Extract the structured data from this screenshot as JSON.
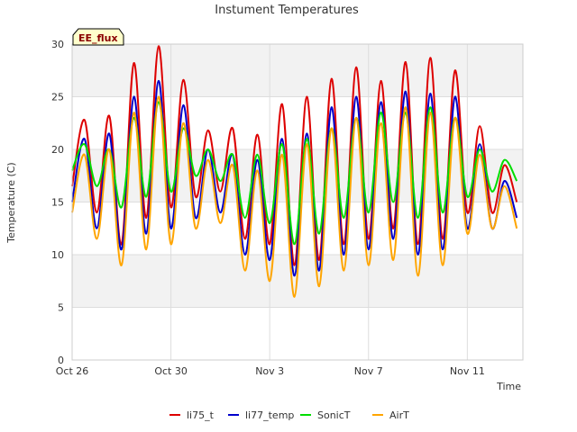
{
  "chart_data": {
    "type": "line",
    "title": "Instument Temperatures",
    "xlabel": "Time",
    "ylabel": "Temperature (C)",
    "badge": "EE_flux",
    "ylim": [
      0,
      30
    ],
    "yticks": [
      0,
      5,
      10,
      15,
      20,
      25,
      30
    ],
    "xlim": [
      "2023-10-26",
      "2023-11-13T06:00"
    ],
    "xticks": [
      {
        "date": "2023-10-26",
        "label": "Oct 26"
      },
      {
        "date": "2023-10-30",
        "label": "Oct 30"
      },
      {
        "date": "2023-11-03",
        "label": "Nov 3"
      },
      {
        "date": "2023-11-07",
        "label": "Nov 7"
      },
      {
        "date": "2023-11-11",
        "label": "Nov 11"
      }
    ],
    "grid": true,
    "legend_position": "bottom",
    "series": [
      {
        "name": "li75_t",
        "color": "#dd0000",
        "x": [
          "2023-10-26T00:00",
          "2023-10-26T12:00",
          "2023-10-27T00:00",
          "2023-10-27T12:00",
          "2023-10-28T00:00",
          "2023-10-28T12:00",
          "2023-10-29T00:00",
          "2023-10-29T12:00",
          "2023-10-30T00:00",
          "2023-10-30T12:00",
          "2023-10-31T00:00",
          "2023-10-31T12:00",
          "2023-11-01T00:00",
          "2023-11-01T12:00",
          "2023-11-02T00:00",
          "2023-11-02T12:00",
          "2023-11-03T00:00",
          "2023-11-03T12:00",
          "2023-11-04T00:00",
          "2023-11-04T12:00",
          "2023-11-05T00:00",
          "2023-11-05T12:00",
          "2023-11-06T00:00",
          "2023-11-06T12:00",
          "2023-11-07T00:00",
          "2023-11-07T12:00",
          "2023-11-08T00:00",
          "2023-11-08T12:00",
          "2023-11-09T00:00",
          "2023-11-09T12:00",
          "2023-11-10T00:00",
          "2023-11-10T12:00",
          "2023-11-11T00:00",
          "2023-11-11T12:00",
          "2023-11-12T00:00",
          "2023-11-12T12:00",
          "2023-11-13T00:00"
        ],
        "y": [
          16.5,
          22.8,
          14.0,
          23.2,
          11.0,
          28.2,
          13.5,
          29.8,
          14.5,
          26.6,
          15.5,
          21.8,
          16.0,
          22.0,
          11.5,
          21.4,
          11.0,
          24.3,
          9.0,
          25.0,
          9.5,
          26.7,
          11.0,
          27.8,
          11.5,
          26.5,
          12.5,
          28.3,
          11.0,
          28.7,
          11.5,
          27.5,
          14.0,
          22.2,
          14.0,
          18.5,
          15.0
        ]
      },
      {
        "name": "li77_temp",
        "color": "#0000cc",
        "x": [
          "2023-10-26T00:00",
          "2023-10-26T12:00",
          "2023-10-27T00:00",
          "2023-10-27T12:00",
          "2023-10-28T00:00",
          "2023-10-28T12:00",
          "2023-10-29T00:00",
          "2023-10-29T12:00",
          "2023-10-30T00:00",
          "2023-10-30T12:00",
          "2023-10-31T00:00",
          "2023-10-31T12:00",
          "2023-11-01T00:00",
          "2023-11-01T12:00",
          "2023-11-02T00:00",
          "2023-11-02T12:00",
          "2023-11-03T00:00",
          "2023-11-03T12:00",
          "2023-11-04T00:00",
          "2023-11-04T12:00",
          "2023-11-05T00:00",
          "2023-11-05T12:00",
          "2023-11-06T00:00",
          "2023-11-06T12:00",
          "2023-11-07T00:00",
          "2023-11-07T12:00",
          "2023-11-08T00:00",
          "2023-11-08T12:00",
          "2023-11-09T00:00",
          "2023-11-09T12:00",
          "2023-11-10T00:00",
          "2023-11-10T12:00",
          "2023-11-11T00:00",
          "2023-11-11T12:00",
          "2023-11-12T00:00",
          "2023-11-12T12:00",
          "2023-11-13T00:00"
        ],
        "y": [
          15.0,
          21.0,
          12.5,
          21.5,
          10.5,
          25.0,
          12.0,
          26.5,
          12.5,
          24.2,
          13.5,
          20.0,
          14.0,
          19.5,
          10.0,
          19.0,
          9.5,
          21.0,
          8.0,
          21.5,
          8.5,
          24.0,
          10.0,
          25.0,
          10.5,
          24.5,
          11.5,
          25.5,
          10.0,
          25.3,
          10.5,
          25.0,
          12.5,
          20.5,
          12.5,
          17.0,
          13.5
        ]
      },
      {
        "name": "SonicT",
        "color": "#00dd00",
        "x": [
          "2023-10-26T00:00",
          "2023-10-26T12:00",
          "2023-10-27T00:00",
          "2023-10-27T12:00",
          "2023-10-28T00:00",
          "2023-10-28T12:00",
          "2023-10-29T00:00",
          "2023-10-29T12:00",
          "2023-10-30T00:00",
          "2023-10-30T12:00",
          "2023-10-31T00:00",
          "2023-10-31T12:00",
          "2023-11-01T00:00",
          "2023-11-01T12:00",
          "2023-11-02T00:00",
          "2023-11-02T12:00",
          "2023-11-03T00:00",
          "2023-11-03T12:00",
          "2023-11-04T00:00",
          "2023-11-04T12:00",
          "2023-11-05T00:00",
          "2023-11-05T12:00",
          "2023-11-06T00:00",
          "2023-11-06T12:00",
          "2023-11-07T00:00",
          "2023-11-07T12:00",
          "2023-11-08T00:00",
          "2023-11-08T12:00",
          "2023-11-09T00:00",
          "2023-11-09T12:00",
          "2023-11-10T00:00",
          "2023-11-10T12:00",
          "2023-11-11T00:00",
          "2023-11-11T12:00",
          "2023-11-12T00:00",
          "2023-11-12T12:00",
          "2023-11-13T00:00"
        ],
        "y": [
          18.0,
          20.5,
          16.5,
          20.0,
          14.5,
          23.0,
          15.5,
          24.5,
          16.0,
          22.0,
          17.5,
          20.0,
          17.0,
          19.5,
          13.5,
          19.5,
          13.0,
          20.5,
          11.0,
          21.0,
          12.0,
          22.0,
          13.5,
          23.0,
          14.0,
          23.5,
          15.0,
          23.5,
          13.5,
          24.0,
          14.0,
          23.0,
          15.5,
          20.0,
          16.0,
          19.0,
          17.0
        ]
      },
      {
        "name": "AirT",
        "color": "#ffa500",
        "x": [
          "2023-10-26T00:00",
          "2023-10-26T12:00",
          "2023-10-27T00:00",
          "2023-10-27T12:00",
          "2023-10-28T00:00",
          "2023-10-28T12:00",
          "2023-10-29T00:00",
          "2023-10-29T12:00",
          "2023-10-30T00:00",
          "2023-10-30T12:00",
          "2023-10-31T00:00",
          "2023-10-31T12:00",
          "2023-11-01T00:00",
          "2023-11-01T12:00",
          "2023-11-02T00:00",
          "2023-11-02T12:00",
          "2023-11-03T00:00",
          "2023-11-03T12:00",
          "2023-11-04T00:00",
          "2023-11-04T12:00",
          "2023-11-05T00:00",
          "2023-11-05T12:00",
          "2023-11-06T00:00",
          "2023-11-06T12:00",
          "2023-11-07T00:00",
          "2023-11-07T12:00",
          "2023-11-08T00:00",
          "2023-11-08T12:00",
          "2023-11-09T00:00",
          "2023-11-09T12:00",
          "2023-11-10T00:00",
          "2023-11-10T12:00",
          "2023-11-11T00:00",
          "2023-11-11T12:00",
          "2023-11-12T00:00",
          "2023-11-12T12:00",
          "2023-11-13T00:00"
        ],
        "y": [
          14.0,
          19.5,
          11.5,
          20.0,
          9.0,
          23.5,
          10.5,
          25.0,
          11.0,
          22.5,
          12.5,
          19.0,
          13.0,
          18.5,
          8.5,
          18.0,
          7.5,
          19.5,
          6.0,
          20.5,
          7.0,
          22.0,
          8.5,
          23.0,
          9.0,
          22.5,
          9.5,
          24.0,
          8.0,
          23.5,
          9.0,
          23.0,
          12.0,
          19.5,
          12.5,
          16.5,
          12.5
        ]
      }
    ]
  }
}
